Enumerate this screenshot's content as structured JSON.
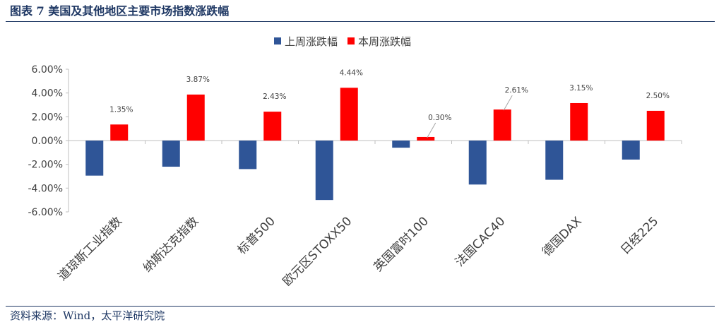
{
  "figure": {
    "title": "图表 7 美国及其他地区主要市场指数涨跌幅",
    "source": "资料来源：Wind，太平洋研究院"
  },
  "colors": {
    "header": "#1f3864",
    "last_week": "#2f5597",
    "this_week": "#ff0000"
  },
  "chart_data": {
    "type": "bar",
    "categories": [
      "道琼斯工业指数",
      "纳斯达克指数",
      "标普500",
      "欧元区STOXX50",
      "英国富时100",
      "法国CAC40",
      "德国DAX",
      "日经225"
    ],
    "series": [
      {
        "name": "上周涨跌幅",
        "values": [
          -2.95,
          -2.2,
          -2.4,
          -5.0,
          -0.6,
          -3.7,
          -3.3,
          -1.6
        ],
        "labels": []
      },
      {
        "name": "本周涨跌幅",
        "values": [
          1.35,
          3.87,
          2.43,
          4.44,
          0.3,
          2.61,
          3.15,
          2.5
        ],
        "labels": [
          "1.35%",
          "3.87%",
          "2.43%",
          "4.44%",
          "0.30%",
          "2.61%",
          "3.15%",
          "2.50%"
        ]
      }
    ],
    "ylim": [
      -6,
      6
    ],
    "yticks": [
      6,
      4,
      2,
      0,
      -2,
      -4,
      -6
    ],
    "ytick_labels": [
      "6.00%",
      "4.00%",
      "2.00%",
      "0.00%",
      "-2.00%",
      "-4.00%",
      "-6.00%"
    ],
    "legend_position": "top-center",
    "grid": false
  }
}
